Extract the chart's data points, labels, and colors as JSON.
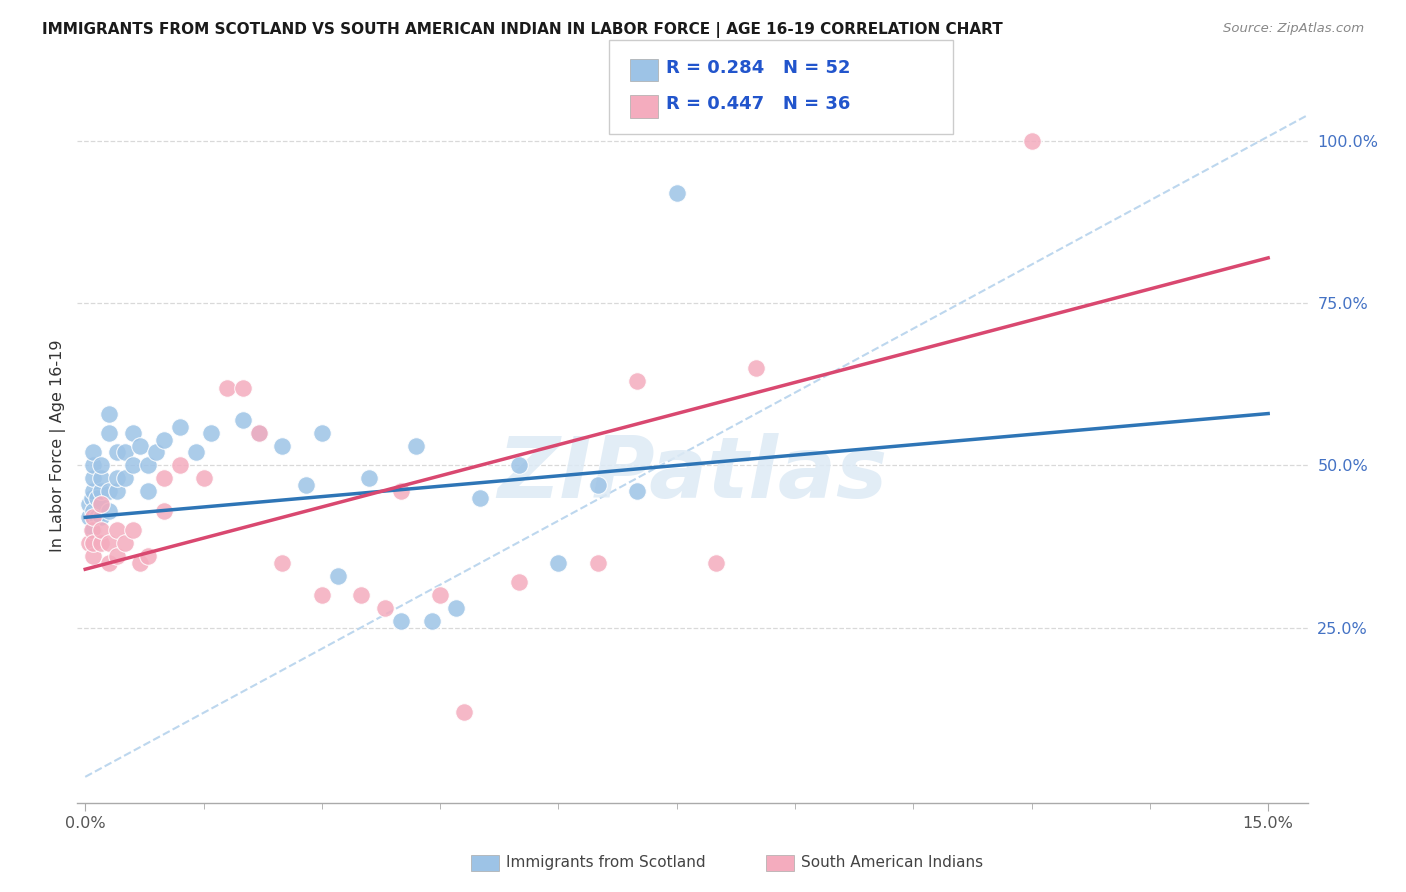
{
  "title": "IMMIGRANTS FROM SCOTLAND VS SOUTH AMERICAN INDIAN IN LABOR FORCE | AGE 16-19 CORRELATION CHART",
  "source": "Source: ZipAtlas.com",
  "ylabel": "In Labor Force | Age 16-19",
  "xlim": [
    -0.001,
    0.155
  ],
  "ylim": [
    -0.02,
    1.08
  ],
  "xtick_major": [
    0.0,
    0.15
  ],
  "xtick_minor": [
    0.0,
    0.015,
    0.03,
    0.045,
    0.06,
    0.075,
    0.09,
    0.105,
    0.12,
    0.135,
    0.15
  ],
  "xticklabels_major": [
    "0.0%",
    "15.0%"
  ],
  "yticks_right": [
    0.25,
    0.5,
    0.75,
    1.0
  ],
  "yticklabels_right": [
    "25.0%",
    "50.0%",
    "75.0%",
    "100.0%"
  ],
  "blue_scatter_color": "#9DC3E6",
  "pink_scatter_color": "#F4ACBE",
  "blue_line_color": "#2E75B6",
  "pink_line_color": "#D94870",
  "dashed_line_color": "#BDD7EE",
  "grid_color": "#D9D9D9",
  "watermark_color": "#DDEAF5",
  "scotland_x": [
    0.0005,
    0.0005,
    0.0008,
    0.001,
    0.001,
    0.001,
    0.001,
    0.001,
    0.001,
    0.0015,
    0.0015,
    0.002,
    0.002,
    0.002,
    0.002,
    0.002,
    0.003,
    0.003,
    0.003,
    0.003,
    0.004,
    0.004,
    0.004,
    0.005,
    0.005,
    0.006,
    0.006,
    0.007,
    0.008,
    0.008,
    0.009,
    0.01,
    0.012,
    0.014,
    0.016,
    0.02,
    0.022,
    0.025,
    0.028,
    0.03,
    0.032,
    0.036,
    0.04,
    0.042,
    0.044,
    0.047,
    0.05,
    0.055,
    0.06,
    0.065,
    0.07,
    0.075
  ],
  "scotland_y": [
    0.42,
    0.44,
    0.45,
    0.4,
    0.43,
    0.46,
    0.48,
    0.5,
    0.52,
    0.42,
    0.45,
    0.42,
    0.44,
    0.46,
    0.48,
    0.5,
    0.43,
    0.46,
    0.55,
    0.58,
    0.46,
    0.48,
    0.52,
    0.48,
    0.52,
    0.5,
    0.55,
    0.53,
    0.46,
    0.5,
    0.52,
    0.54,
    0.56,
    0.52,
    0.55,
    0.57,
    0.55,
    0.53,
    0.47,
    0.55,
    0.33,
    0.48,
    0.26,
    0.53,
    0.26,
    0.28,
    0.45,
    0.5,
    0.35,
    0.47,
    0.46,
    0.92
  ],
  "india_x": [
    0.0005,
    0.0008,
    0.001,
    0.001,
    0.001,
    0.002,
    0.002,
    0.002,
    0.003,
    0.003,
    0.004,
    0.004,
    0.005,
    0.006,
    0.007,
    0.008,
    0.01,
    0.01,
    0.012,
    0.015,
    0.018,
    0.02,
    0.022,
    0.025,
    0.03,
    0.035,
    0.038,
    0.04,
    0.045,
    0.048,
    0.055,
    0.065,
    0.07,
    0.08,
    0.085,
    0.12
  ],
  "india_y": [
    0.38,
    0.4,
    0.36,
    0.38,
    0.42,
    0.38,
    0.4,
    0.44,
    0.35,
    0.38,
    0.36,
    0.4,
    0.38,
    0.4,
    0.35,
    0.36,
    0.43,
    0.48,
    0.5,
    0.48,
    0.62,
    0.62,
    0.55,
    0.35,
    0.3,
    0.3,
    0.28,
    0.46,
    0.3,
    0.12,
    0.32,
    0.35,
    0.63,
    0.35,
    0.65,
    1.0
  ],
  "blue_line_x": [
    0.0,
    0.15
  ],
  "blue_line_y": [
    0.42,
    0.58
  ],
  "pink_line_x": [
    0.0,
    0.15
  ],
  "pink_line_y": [
    0.34,
    0.82
  ]
}
